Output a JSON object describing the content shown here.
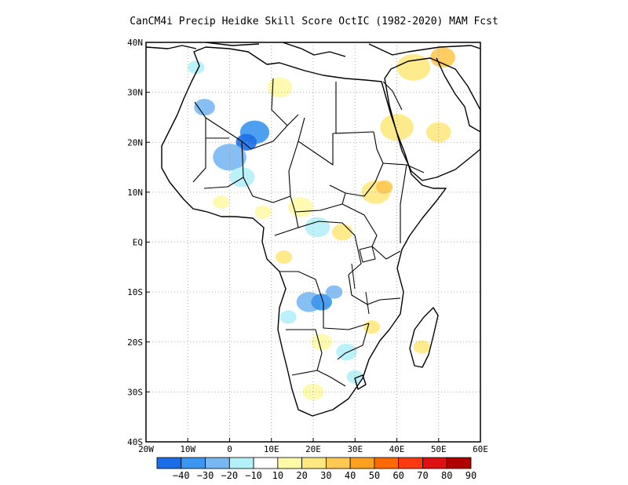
{
  "title": "CanCM4i Precip Heidke Skill Score OctIC (1982-2020) MAM Fcst",
  "chart_data": {
    "type": "heatmap",
    "lon_range": [
      -20,
      60
    ],
    "lat_range": [
      -40,
      40
    ],
    "lat_ticks": [
      {
        "value": 40,
        "label": "40N"
      },
      {
        "value": 30,
        "label": "30N"
      },
      {
        "value": 20,
        "label": "20N"
      },
      {
        "value": 10,
        "label": "10N"
      },
      {
        "value": 0,
        "label": "EQ"
      },
      {
        "value": -10,
        "label": "10S"
      },
      {
        "value": -20,
        "label": "20S"
      },
      {
        "value": -30,
        "label": "30S"
      },
      {
        "value": -40,
        "label": "40S"
      }
    ],
    "lon_ticks": [
      {
        "value": -20,
        "label": "20W"
      },
      {
        "value": -10,
        "label": "10W"
      },
      {
        "value": 0,
        "label": "0"
      },
      {
        "value": 10,
        "label": "10E"
      },
      {
        "value": 20,
        "label": "20E"
      },
      {
        "value": 30,
        "label": "30E"
      },
      {
        "value": 40,
        "label": "40E"
      },
      {
        "value": 50,
        "label": "50E"
      },
      {
        "value": 60,
        "label": "60E"
      }
    ],
    "grid": true,
    "colorbar": {
      "boundaries": [
        "-40",
        "-30",
        "-20",
        "-10",
        "10",
        "20",
        "30",
        "40",
        "50",
        "60",
        "70",
        "80",
        "90"
      ],
      "colors": [
        "#1c6ee8",
        "#3a96f0",
        "#78b8f2",
        "#b4f0f8",
        "#ffffff",
        "#fffaa8",
        "#ffe880",
        "#ffc850",
        "#ffa020",
        "#ff6a00",
        "#ff3a10",
        "#e01010",
        "#b00000"
      ]
    },
    "skill_patches": [
      {
        "lon": 6,
        "lat": 22,
        "r": 3.5,
        "level": -30
      },
      {
        "lon": 4,
        "lat": 20,
        "r": 2.5,
        "level": -40
      },
      {
        "lon": 0,
        "lat": 17,
        "r": 4,
        "level": -20
      },
      {
        "lon": -6,
        "lat": 27,
        "r": 2.5,
        "level": -20
      },
      {
        "lon": -8,
        "lat": 35,
        "r": 2,
        "level": -10
      },
      {
        "lon": 3,
        "lat": 13,
        "r": 3,
        "level": -10
      },
      {
        "lon": 21,
        "lat": 3,
        "r": 3,
        "level": -10
      },
      {
        "lon": 19,
        "lat": -12,
        "r": 3,
        "level": -20
      },
      {
        "lon": 22,
        "lat": -12,
        "r": 2.5,
        "level": -30
      },
      {
        "lon": 25,
        "lat": -10,
        "r": 2,
        "level": -20
      },
      {
        "lon": 14,
        "lat": -15,
        "r": 2,
        "level": -10
      },
      {
        "lon": 28,
        "lat": -22,
        "r": 2.5,
        "level": -10
      },
      {
        "lon": 44,
        "lat": 35,
        "r": 4,
        "level": 20
      },
      {
        "lon": 40,
        "lat": 23,
        "r": 4,
        "level": 20
      },
      {
        "lon": 50,
        "lat": 22,
        "r": 3,
        "level": 20
      },
      {
        "lon": 51,
        "lat": 37,
        "r": 3,
        "level": 30
      },
      {
        "lon": 35,
        "lat": 10,
        "r": 3.5,
        "level": 20
      },
      {
        "lon": 37,
        "lat": 11,
        "r": 2,
        "level": 30
      },
      {
        "lon": 12,
        "lat": 31,
        "r": 3,
        "level": 10
      },
      {
        "lon": 17,
        "lat": 7,
        "r": 3,
        "level": 10
      },
      {
        "lon": 27,
        "lat": 2,
        "r": 2.5,
        "level": 20
      },
      {
        "lon": 13,
        "lat": -3,
        "r": 2,
        "level": 20
      },
      {
        "lon": 8,
        "lat": 6,
        "r": 2,
        "level": 10
      },
      {
        "lon": -2,
        "lat": 8,
        "r": 2,
        "level": 10
      },
      {
        "lon": 22,
        "lat": -20,
        "r": 2.5,
        "level": 10
      },
      {
        "lon": 34,
        "lat": -17,
        "r": 2,
        "level": 20
      },
      {
        "lon": 46,
        "lat": -21,
        "r": 2,
        "level": 20
      },
      {
        "lon": 20,
        "lat": -30,
        "r": 2.5,
        "level": 10
      },
      {
        "lon": 30,
        "lat": -27,
        "r": 2,
        "level": -10
      }
    ]
  }
}
